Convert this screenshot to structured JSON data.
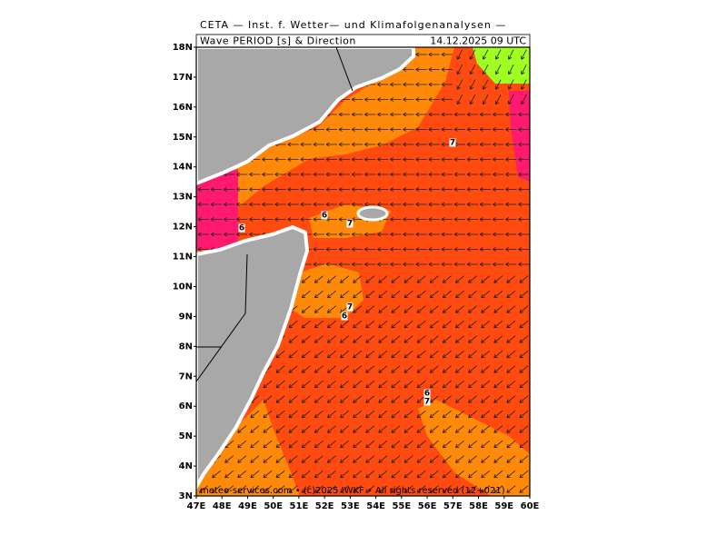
{
  "header": {
    "title": "CETA — Inst. f. Wetter— und Klimafolgenanalysen —",
    "subtitle": "Wave PERIOD [s] & Direction",
    "datetime": "14.12.2025 09 UTC"
  },
  "lat_labels": [
    "18N",
    "17N",
    "16N",
    "15N",
    "14N",
    "13N",
    "12N",
    "11N",
    "10N",
    "9N",
    "8N",
    "7N",
    "6N",
    "5N",
    "4N",
    "3N"
  ],
  "lon_labels": [
    "47E",
    "48E",
    "49E",
    "50E",
    "51E",
    "52E",
    "53E",
    "54E",
    "55E",
    "56E",
    "57E",
    "58E",
    "59E",
    "60E"
  ],
  "contour_labels": [
    "6",
    "6",
    "7",
    "7",
    "7",
    "6",
    "6",
    "7"
  ],
  "footer": "meteo-services.com • (c)2025 IWKF • All rights reserved (12+021)"
}
